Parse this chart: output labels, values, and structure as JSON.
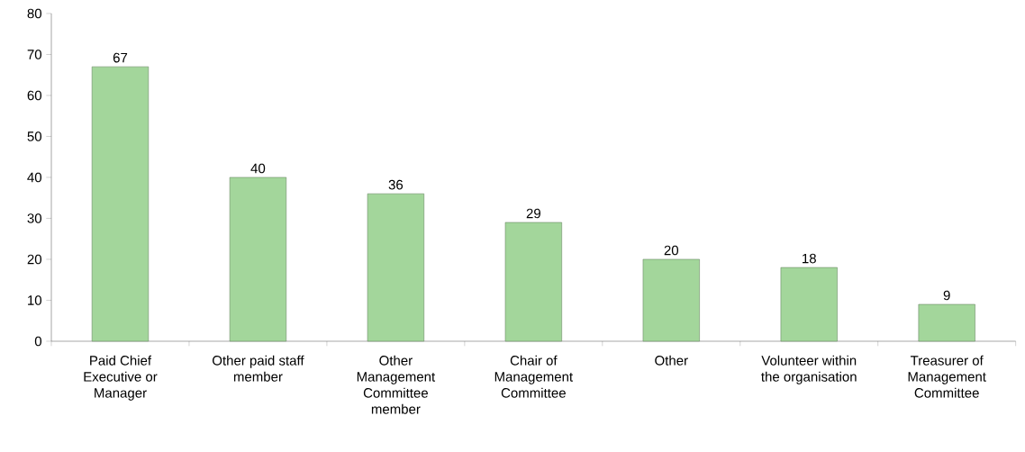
{
  "chart_data": {
    "type": "bar",
    "categories": [
      "Paid Chief Executive or Manager",
      "Other paid staff member",
      "Other Management Committee member",
      "Chair of Management Committee",
      "Other",
      "Volunteer within the organisation",
      "Treasurer of Management Committee"
    ],
    "values": [
      67,
      40,
      36,
      29,
      20,
      18,
      9
    ],
    "color": "#a3d69b",
    "ylim": [
      0,
      80
    ],
    "yticks": [
      0,
      10,
      20,
      30,
      40,
      50,
      60,
      70,
      80
    ],
    "data_labels": true
  }
}
